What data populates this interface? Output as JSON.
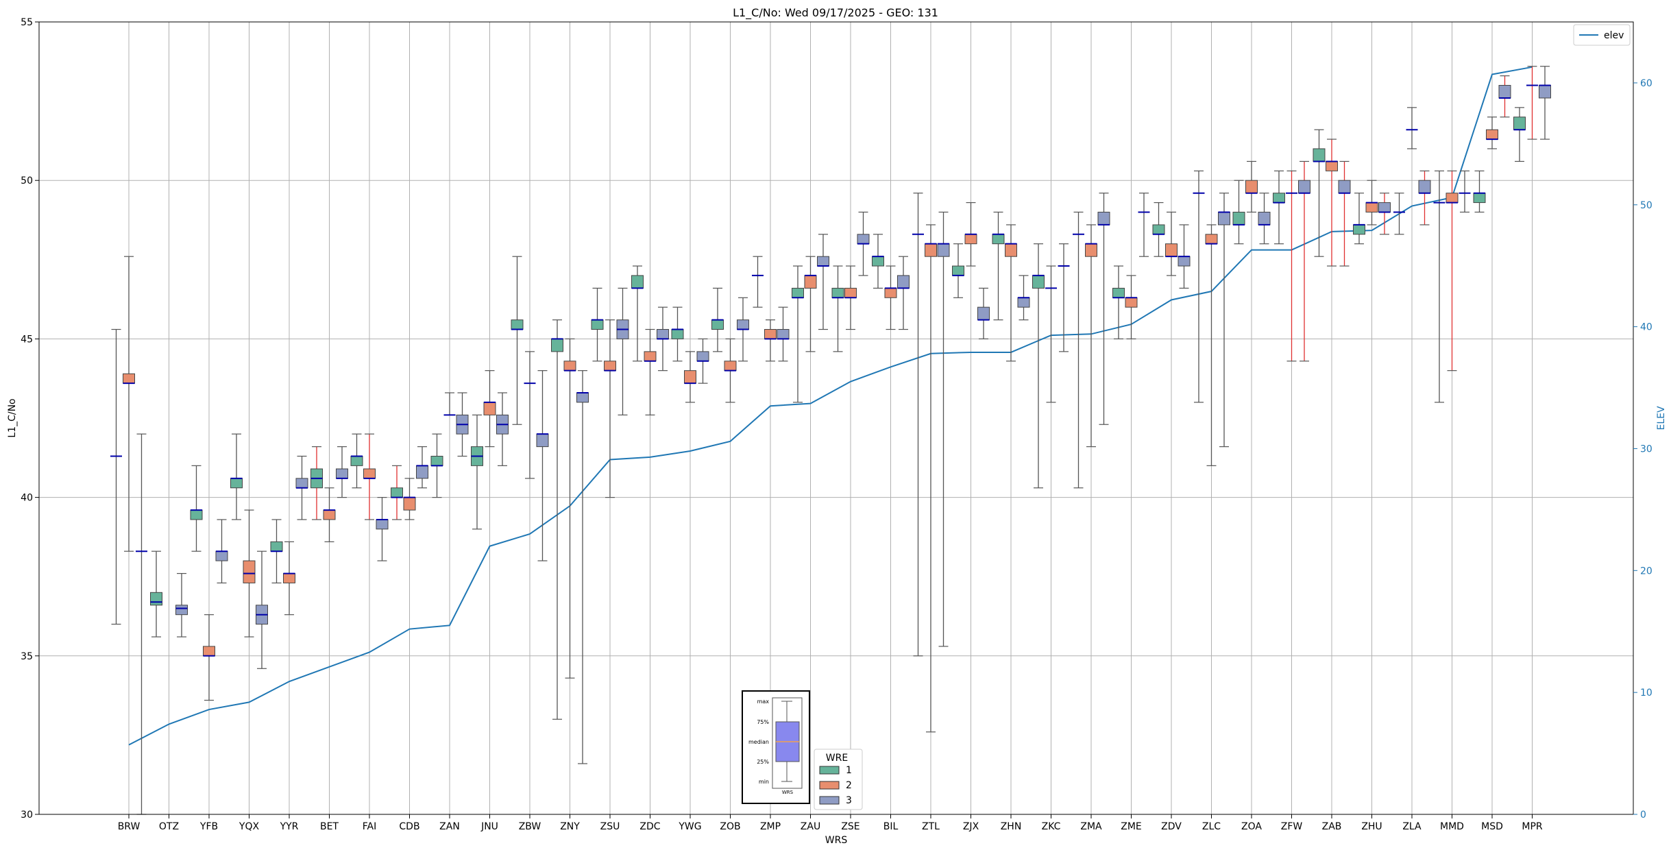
{
  "chart_data": {
    "type": "box",
    "title": "L1_C/No: Wed 09/17/2025 - GEO: 131",
    "xlabel": "WRS",
    "ylabel": "L1_C/No",
    "y2label": "ELEV",
    "ylim": [
      30,
      55
    ],
    "y2lim": [
      0,
      65
    ],
    "yticks": [
      "30",
      "35",
      "40",
      "45",
      "50",
      "55"
    ],
    "y2ticks": [
      "0",
      "10",
      "20",
      "30",
      "40",
      "50",
      "60"
    ],
    "grid": true,
    "categories": [
      "BRW",
      "OTZ",
      "YFB",
      "YQX",
      "YYR",
      "BET",
      "FAI",
      "CDB",
      "ZAN",
      "JNU",
      "ZBW",
      "ZNY",
      "ZSU",
      "ZDC",
      "YWG",
      "ZOB",
      "ZMP",
      "ZAU",
      "ZSE",
      "BIL",
      "ZTL",
      "ZJX",
      "ZHN",
      "ZKC",
      "ZMA",
      "ZME",
      "ZDV",
      "ZLC",
      "ZOA",
      "ZFW",
      "ZAB",
      "ZHU",
      "ZLA",
      "MMD",
      "MSD",
      "MPR"
    ],
    "colors": {
      "wre1": "#66b39a",
      "wre2": "#e88e6e",
      "wre3": "#8f9cc4",
      "elev": "#1f77b4",
      "median": "#0000aa",
      "whisker_alt": "#e03030"
    },
    "legend_elev": {
      "label": "elev",
      "position": "top-right"
    },
    "legend_wre": {
      "title": "WRE",
      "labels": [
        "1",
        "2",
        "3"
      ],
      "position": "bottom-center"
    },
    "inset_key": {
      "labels": [
        "max",
        "75%",
        "median",
        "25%",
        "min"
      ],
      "caption": "WRS"
    },
    "elev_series": {
      "name": "elev",
      "values": [
        5.7,
        7.4,
        8.6,
        9.2,
        10.9,
        12.1,
        13.3,
        15.2,
        15.5,
        22.0,
        23.0,
        25.3,
        29.1,
        29.3,
        29.8,
        30.6,
        33.5,
        33.7,
        35.5,
        36.7,
        37.8,
        37.9,
        37.9,
        39.3,
        39.4,
        40.2,
        42.2,
        42.9,
        46.3,
        46.3,
        47.8,
        47.9,
        49.9,
        50.6,
        60.7,
        61.3
      ]
    },
    "boxes": [
      {
        "wrs": "BRW",
        "wre": 1,
        "min": 36.0,
        "q1": 41.3,
        "median": 41.3,
        "q3": 41.3,
        "max": 45.3
      },
      {
        "wrs": "BRW",
        "wre": 2,
        "min": 38.3,
        "q1": 43.6,
        "median": 43.6,
        "q3": 43.9,
        "max": 47.6
      },
      {
        "wrs": "BRW",
        "wre": 3,
        "min": 30.0,
        "q1": 38.3,
        "median": 38.3,
        "q3": 38.3,
        "max": 42.0
      },
      {
        "wrs": "OTZ",
        "wre": 1,
        "min": 35.6,
        "q1": 36.6,
        "median": 36.7,
        "q3": 37.0,
        "max": 38.3
      },
      {
        "wrs": "OTZ",
        "wre": 3,
        "min": 35.6,
        "q1": 36.3,
        "median": 36.5,
        "q3": 36.6,
        "max": 37.6
      },
      {
        "wrs": "YFB",
        "wre": 1,
        "min": 38.3,
        "q1": 39.3,
        "median": 39.6,
        "q3": 39.6,
        "max": 41.0
      },
      {
        "wrs": "YFB",
        "wre": 2,
        "min": 33.6,
        "q1": 35.0,
        "median": 35.0,
        "q3": 35.3,
        "max": 36.3
      },
      {
        "wrs": "YFB",
        "wre": 3,
        "min": 37.3,
        "q1": 38.0,
        "median": 38.3,
        "q3": 38.3,
        "max": 39.3
      },
      {
        "wrs": "YQX",
        "wre": 1,
        "min": 39.3,
        "q1": 40.3,
        "median": 40.6,
        "q3": 40.6,
        "max": 42.0
      },
      {
        "wrs": "YQX",
        "wre": 2,
        "min": 35.6,
        "q1": 37.3,
        "median": 37.6,
        "q3": 38.0,
        "max": 39.6
      },
      {
        "wrs": "YQX",
        "wre": 3,
        "min": 34.6,
        "q1": 36.0,
        "median": 36.3,
        "q3": 36.6,
        "max": 38.3
      },
      {
        "wrs": "YYR",
        "wre": 1,
        "min": 37.3,
        "q1": 38.3,
        "median": 38.3,
        "q3": 38.6,
        "max": 39.3
      },
      {
        "wrs": "YYR",
        "wre": 2,
        "min": 36.3,
        "q1": 37.3,
        "median": 37.6,
        "q3": 37.6,
        "max": 38.6
      },
      {
        "wrs": "YYR",
        "wre": 3,
        "min": 39.3,
        "q1": 40.3,
        "median": 40.3,
        "q3": 40.6,
        "max": 41.3
      },
      {
        "wrs": "BET",
        "wre": 1,
        "min": 39.3,
        "q1": 40.3,
        "median": 40.6,
        "q3": 40.9,
        "max": 41.6,
        "red": true
      },
      {
        "wrs": "BET",
        "wre": 2,
        "min": 38.6,
        "q1": 39.3,
        "median": 39.6,
        "q3": 39.6,
        "max": 40.3
      },
      {
        "wrs": "BET",
        "wre": 3,
        "min": 40.0,
        "q1": 40.6,
        "median": 40.6,
        "q3": 40.9,
        "max": 41.6
      },
      {
        "wrs": "FAI",
        "wre": 1,
        "min": 40.3,
        "q1": 41.0,
        "median": 41.3,
        "q3": 41.3,
        "max": 42.0
      },
      {
        "wrs": "FAI",
        "wre": 2,
        "min": 39.3,
        "q1": 40.6,
        "median": 40.6,
        "q3": 40.9,
        "max": 42.0,
        "red": true
      },
      {
        "wrs": "FAI",
        "wre": 3,
        "min": 38.0,
        "q1": 39.0,
        "median": 39.3,
        "q3": 39.3,
        "max": 40.0
      },
      {
        "wrs": "CDB",
        "wre": 1,
        "min": 39.3,
        "q1": 40.0,
        "median": 40.0,
        "q3": 40.3,
        "max": 41.0,
        "red": true
      },
      {
        "wrs": "CDB",
        "wre": 2,
        "min": 39.3,
        "q1": 39.6,
        "median": 40.0,
        "q3": 40.0,
        "max": 40.6
      },
      {
        "wrs": "CDB",
        "wre": 3,
        "min": 40.3,
        "q1": 40.6,
        "median": 41.0,
        "q3": 41.0,
        "max": 41.6
      },
      {
        "wrs": "ZAN",
        "wre": 1,
        "min": 40.0,
        "q1": 41.0,
        "median": 41.0,
        "q3": 41.3,
        "max": 42.0
      },
      {
        "wrs": "ZAN",
        "wre": 2,
        "min": 42.6,
        "q1": 42.6,
        "median": 42.6,
        "q3": 42.6,
        "max": 43.3
      },
      {
        "wrs": "ZAN",
        "wre": 3,
        "min": 41.3,
        "q1": 42.0,
        "median": 42.3,
        "q3": 42.6,
        "max": 43.3
      },
      {
        "wrs": "JNU",
        "wre": 1,
        "min": 39.0,
        "q1": 41.0,
        "median": 41.3,
        "q3": 41.6,
        "max": 42.6
      },
      {
        "wrs": "JNU",
        "wre": 2,
        "min": 41.6,
        "q1": 42.6,
        "median": 43.0,
        "q3": 43.0,
        "max": 44.0
      },
      {
        "wrs": "JNU",
        "wre": 3,
        "min": 41.0,
        "q1": 42.0,
        "median": 42.3,
        "q3": 42.6,
        "max": 43.3
      },
      {
        "wrs": "ZBW",
        "wre": 1,
        "min": 42.3,
        "q1": 45.3,
        "median": 45.3,
        "q3": 45.6,
        "max": 47.6
      },
      {
        "wrs": "ZBW",
        "wre": 2,
        "min": 40.6,
        "q1": 43.6,
        "median": 43.6,
        "q3": 43.6,
        "max": 44.6
      },
      {
        "wrs": "ZBW",
        "wre": 3,
        "min": 38.0,
        "q1": 41.6,
        "median": 42.0,
        "q3": 42.0,
        "max": 44.0
      },
      {
        "wrs": "ZNY",
        "wre": 1,
        "min": 33.0,
        "q1": 44.6,
        "median": 45.0,
        "q3": 45.0,
        "max": 45.6
      },
      {
        "wrs": "ZNY",
        "wre": 2,
        "min": 34.3,
        "q1": 44.0,
        "median": 44.0,
        "q3": 44.3,
        "max": 45.0
      },
      {
        "wrs": "ZNY",
        "wre": 3,
        "min": 31.6,
        "q1": 43.0,
        "median": 43.3,
        "q3": 43.3,
        "max": 44.0
      },
      {
        "wrs": "ZSU",
        "wre": 1,
        "min": 44.3,
        "q1": 45.3,
        "median": 45.6,
        "q3": 45.6,
        "max": 46.6
      },
      {
        "wrs": "ZSU",
        "wre": 2,
        "min": 40.0,
        "q1": 44.0,
        "median": 44.0,
        "q3": 44.3,
        "max": 45.6
      },
      {
        "wrs": "ZSU",
        "wre": 3,
        "min": 42.6,
        "q1": 45.0,
        "median": 45.3,
        "q3": 45.6,
        "max": 46.6
      },
      {
        "wrs": "ZDC",
        "wre": 1,
        "min": 44.3,
        "q1": 46.6,
        "median": 46.6,
        "q3": 47.0,
        "max": 47.3
      },
      {
        "wrs": "ZDC",
        "wre": 2,
        "min": 42.6,
        "q1": 44.3,
        "median": 44.3,
        "q3": 44.6,
        "max": 45.3
      },
      {
        "wrs": "ZDC",
        "wre": 3,
        "min": 44.0,
        "q1": 45.0,
        "median": 45.0,
        "q3": 45.3,
        "max": 46.0
      },
      {
        "wrs": "YWG",
        "wre": 1,
        "min": 44.3,
        "q1": 45.0,
        "median": 45.3,
        "q3": 45.3,
        "max": 46.0
      },
      {
        "wrs": "YWG",
        "wre": 2,
        "min": 43.0,
        "q1": 43.6,
        "median": 43.6,
        "q3": 44.0,
        "max": 44.6
      },
      {
        "wrs": "YWG",
        "wre": 3,
        "min": 43.6,
        "q1": 44.3,
        "median": 44.3,
        "q3": 44.6,
        "max": 45.0
      },
      {
        "wrs": "ZOB",
        "wre": 1,
        "min": 44.6,
        "q1": 45.3,
        "median": 45.6,
        "q3": 45.6,
        "max": 46.6
      },
      {
        "wrs": "ZOB",
        "wre": 2,
        "min": 43.0,
        "q1": 44.0,
        "median": 44.0,
        "q3": 44.3,
        "max": 45.0
      },
      {
        "wrs": "ZOB",
        "wre": 3,
        "min": 44.3,
        "q1": 45.3,
        "median": 45.3,
        "q3": 45.6,
        "max": 46.3
      },
      {
        "wrs": "ZMP",
        "wre": 1,
        "min": 46.0,
        "q1": 47.0,
        "median": 47.0,
        "q3": 47.0,
        "max": 47.6
      },
      {
        "wrs": "ZMP",
        "wre": 2,
        "min": 44.3,
        "q1": 45.0,
        "median": 45.0,
        "q3": 45.3,
        "max": 45.6
      },
      {
        "wrs": "ZMP",
        "wre": 3,
        "min": 44.3,
        "q1": 45.0,
        "median": 45.0,
        "q3": 45.3,
        "max": 46.0
      },
      {
        "wrs": "ZAU",
        "wre": 1,
        "min": 43.0,
        "q1": 46.3,
        "median": 46.3,
        "q3": 46.6,
        "max": 47.3
      },
      {
        "wrs": "ZAU",
        "wre": 2,
        "min": 44.6,
        "q1": 46.6,
        "median": 47.0,
        "q3": 47.0,
        "max": 47.6
      },
      {
        "wrs": "ZAU",
        "wre": 3,
        "min": 45.3,
        "q1": 47.3,
        "median": 47.3,
        "q3": 47.6,
        "max": 48.3
      },
      {
        "wrs": "ZSE",
        "wre": 1,
        "min": 44.6,
        "q1": 46.3,
        "median": 46.3,
        "q3": 46.6,
        "max": 47.3
      },
      {
        "wrs": "ZSE",
        "wre": 2,
        "min": 45.3,
        "q1": 46.3,
        "median": 46.3,
        "q3": 46.6,
        "max": 47.3
      },
      {
        "wrs": "ZSE",
        "wre": 3,
        "min": 47.0,
        "q1": 48.0,
        "median": 48.0,
        "q3": 48.3,
        "max": 49.0
      },
      {
        "wrs": "BIL",
        "wre": 1,
        "min": 46.6,
        "q1": 47.3,
        "median": 47.6,
        "q3": 47.6,
        "max": 48.3
      },
      {
        "wrs": "BIL",
        "wre": 2,
        "min": 45.3,
        "q1": 46.3,
        "median": 46.6,
        "q3": 46.6,
        "max": 47.3
      },
      {
        "wrs": "BIL",
        "wre": 3,
        "min": 45.3,
        "q1": 46.6,
        "median": 46.6,
        "q3": 47.0,
        "max": 47.6
      },
      {
        "wrs": "ZTL",
        "wre": 1,
        "min": 35.0,
        "q1": 48.3,
        "median": 48.3,
        "q3": 48.3,
        "max": 49.6
      },
      {
        "wrs": "ZTL",
        "wre": 2,
        "min": 32.6,
        "q1": 47.6,
        "median": 48.0,
        "q3": 48.0,
        "max": 48.6
      },
      {
        "wrs": "ZTL",
        "wre": 3,
        "min": 35.3,
        "q1": 47.6,
        "median": 48.0,
        "q3": 48.0,
        "max": 49.0
      },
      {
        "wrs": "ZJX",
        "wre": 1,
        "min": 46.3,
        "q1": 47.0,
        "median": 47.0,
        "q3": 47.3,
        "max": 48.0
      },
      {
        "wrs": "ZJX",
        "wre": 2,
        "min": 47.3,
        "q1": 48.0,
        "median": 48.3,
        "q3": 48.3,
        "max": 49.3
      },
      {
        "wrs": "ZJX",
        "wre": 3,
        "min": 45.0,
        "q1": 45.6,
        "median": 45.6,
        "q3": 46.0,
        "max": 46.6
      },
      {
        "wrs": "ZHN",
        "wre": 1,
        "min": 45.6,
        "q1": 48.0,
        "median": 48.3,
        "q3": 48.3,
        "max": 49.0
      },
      {
        "wrs": "ZHN",
        "wre": 2,
        "min": 44.3,
        "q1": 47.6,
        "median": 48.0,
        "q3": 48.0,
        "max": 48.6
      },
      {
        "wrs": "ZHN",
        "wre": 3,
        "min": 45.6,
        "q1": 46.0,
        "median": 46.3,
        "q3": 46.3,
        "max": 47.0
      },
      {
        "wrs": "ZKC",
        "wre": 1,
        "min": 40.3,
        "q1": 46.6,
        "median": 47.0,
        "q3": 47.0,
        "max": 48.0
      },
      {
        "wrs": "ZKC",
        "wre": 2,
        "min": 43.0,
        "q1": 46.6,
        "median": 46.6,
        "q3": 46.6,
        "max": 47.3
      },
      {
        "wrs": "ZKC",
        "wre": 3,
        "min": 44.6,
        "q1": 47.3,
        "median": 47.3,
        "q3": 47.3,
        "max": 48.0
      },
      {
        "wrs": "ZMA",
        "wre": 1,
        "min": 40.3,
        "q1": 48.3,
        "median": 48.3,
        "q3": 48.3,
        "max": 49.0
      },
      {
        "wrs": "ZMA",
        "wre": 2,
        "min": 41.6,
        "q1": 47.6,
        "median": 48.0,
        "q3": 48.0,
        "max": 48.6
      },
      {
        "wrs": "ZMA",
        "wre": 3,
        "min": 42.3,
        "q1": 48.6,
        "median": 48.6,
        "q3": 49.0,
        "max": 49.6
      },
      {
        "wrs": "ZME",
        "wre": 1,
        "min": 45.0,
        "q1": 46.3,
        "median": 46.3,
        "q3": 46.6,
        "max": 47.3
      },
      {
        "wrs": "ZME",
        "wre": 2,
        "min": 45.0,
        "q1": 46.0,
        "median": 46.3,
        "q3": 46.3,
        "max": 47.0
      },
      {
        "wrs": "ZME",
        "wre": 3,
        "min": 47.6,
        "q1": 49.0,
        "median": 49.0,
        "q3": 49.0,
        "max": 49.6
      },
      {
        "wrs": "ZDV",
        "wre": 1,
        "min": 47.6,
        "q1": 48.3,
        "median": 48.3,
        "q3": 48.6,
        "max": 49.3
      },
      {
        "wrs": "ZDV",
        "wre": 2,
        "min": 47.0,
        "q1": 47.6,
        "median": 47.6,
        "q3": 48.0,
        "max": 49.0
      },
      {
        "wrs": "ZDV",
        "wre": 3,
        "min": 46.6,
        "q1": 47.3,
        "median": 47.6,
        "q3": 47.6,
        "max": 48.6
      },
      {
        "wrs": "ZLC",
        "wre": 1,
        "min": 43.0,
        "q1": 49.6,
        "median": 49.6,
        "q3": 49.6,
        "max": 50.3
      },
      {
        "wrs": "ZLC",
        "wre": 2,
        "min": 41.0,
        "q1": 48.0,
        "median": 48.0,
        "q3": 48.3,
        "max": 48.6
      },
      {
        "wrs": "ZLC",
        "wre": 3,
        "min": 41.6,
        "q1": 48.6,
        "median": 49.0,
        "q3": 49.0,
        "max": 49.6
      },
      {
        "wrs": "ZOA",
        "wre": 1,
        "min": 48.0,
        "q1": 48.6,
        "median": 48.6,
        "q3": 49.0,
        "max": 50.0
      },
      {
        "wrs": "ZOA",
        "wre": 2,
        "min": 49.0,
        "q1": 49.6,
        "median": 49.6,
        "q3": 50.0,
        "max": 50.6
      },
      {
        "wrs": "ZOA",
        "wre": 3,
        "min": 48.0,
        "q1": 48.6,
        "median": 48.6,
        "q3": 49.0,
        "max": 49.6
      },
      {
        "wrs": "ZFW",
        "wre": 1,
        "min": 48.0,
        "q1": 49.3,
        "median": 49.3,
        "q3": 49.6,
        "max": 50.3
      },
      {
        "wrs": "ZFW",
        "wre": 2,
        "min": 44.3,
        "q1": 49.6,
        "median": 49.6,
        "q3": 49.6,
        "max": 50.3,
        "red": true
      },
      {
        "wrs": "ZFW",
        "wre": 3,
        "min": 44.3,
        "q1": 49.6,
        "median": 49.6,
        "q3": 50.0,
        "max": 50.6,
        "red": true
      },
      {
        "wrs": "ZAB",
        "wre": 1,
        "min": 47.6,
        "q1": 50.6,
        "median": 50.6,
        "q3": 51.0,
        "max": 51.6
      },
      {
        "wrs": "ZAB",
        "wre": 2,
        "min": 47.3,
        "q1": 50.3,
        "median": 50.6,
        "q3": 50.6,
        "max": 51.3,
        "red": true
      },
      {
        "wrs": "ZAB",
        "wre": 3,
        "min": 47.3,
        "q1": 49.6,
        "median": 49.6,
        "q3": 50.0,
        "max": 50.6,
        "red": true
      },
      {
        "wrs": "ZHU",
        "wre": 1,
        "min": 48.0,
        "q1": 48.3,
        "median": 48.6,
        "q3": 48.6,
        "max": 49.6
      },
      {
        "wrs": "ZHU",
        "wre": 2,
        "min": 48.6,
        "q1": 49.0,
        "median": 49.3,
        "q3": 49.3,
        "max": 50.0
      },
      {
        "wrs": "ZHU",
        "wre": 3,
        "min": 48.3,
        "q1": 49.0,
        "median": 49.0,
        "q3": 49.3,
        "max": 49.6,
        "red": true
      },
      {
        "wrs": "ZLA",
        "wre": 1,
        "min": 48.3,
        "q1": 49.0,
        "median": 49.0,
        "q3": 49.0,
        "max": 49.6
      },
      {
        "wrs": "ZLA",
        "wre": 2,
        "min": 51.0,
        "q1": 51.6,
        "median": 51.6,
        "q3": 51.6,
        "max": 52.3
      },
      {
        "wrs": "ZLA",
        "wre": 3,
        "min": 48.6,
        "q1": 49.6,
        "median": 49.6,
        "q3": 50.0,
        "max": 50.3,
        "red": true
      },
      {
        "wrs": "MMD",
        "wre": 1,
        "min": 43.0,
        "q1": 49.3,
        "median": 49.3,
        "q3": 49.3,
        "max": 50.3
      },
      {
        "wrs": "MMD",
        "wre": 2,
        "min": 44.0,
        "q1": 49.3,
        "median": 49.3,
        "q3": 49.6,
        "max": 50.3,
        "red": true
      },
      {
        "wrs": "MMD",
        "wre": 3,
        "min": 49.0,
        "q1": 49.6,
        "median": 49.6,
        "q3": 49.6,
        "max": 50.3
      },
      {
        "wrs": "MSD",
        "wre": 1,
        "min": 49.0,
        "q1": 49.3,
        "median": 49.6,
        "q3": 49.6,
        "max": 50.3
      },
      {
        "wrs": "MSD",
        "wre": 2,
        "min": 51.0,
        "q1": 51.3,
        "median": 51.3,
        "q3": 51.6,
        "max": 52.0
      },
      {
        "wrs": "MSD",
        "wre": 3,
        "min": 52.0,
        "q1": 52.6,
        "median": 52.6,
        "q3": 53.0,
        "max": 53.3,
        "red": true
      },
      {
        "wrs": "MPR",
        "wre": 1,
        "min": 50.6,
        "q1": 51.6,
        "median": 51.6,
        "q3": 52.0,
        "max": 52.3
      },
      {
        "wrs": "MPR",
        "wre": 2,
        "min": 51.3,
        "q1": 53.0,
        "median": 53.0,
        "q3": 53.0,
        "max": 53.6,
        "red": true
      },
      {
        "wrs": "MPR",
        "wre": 3,
        "min": 51.3,
        "q1": 52.6,
        "median": 53.0,
        "q3": 53.0,
        "max": 53.6
      }
    ]
  }
}
